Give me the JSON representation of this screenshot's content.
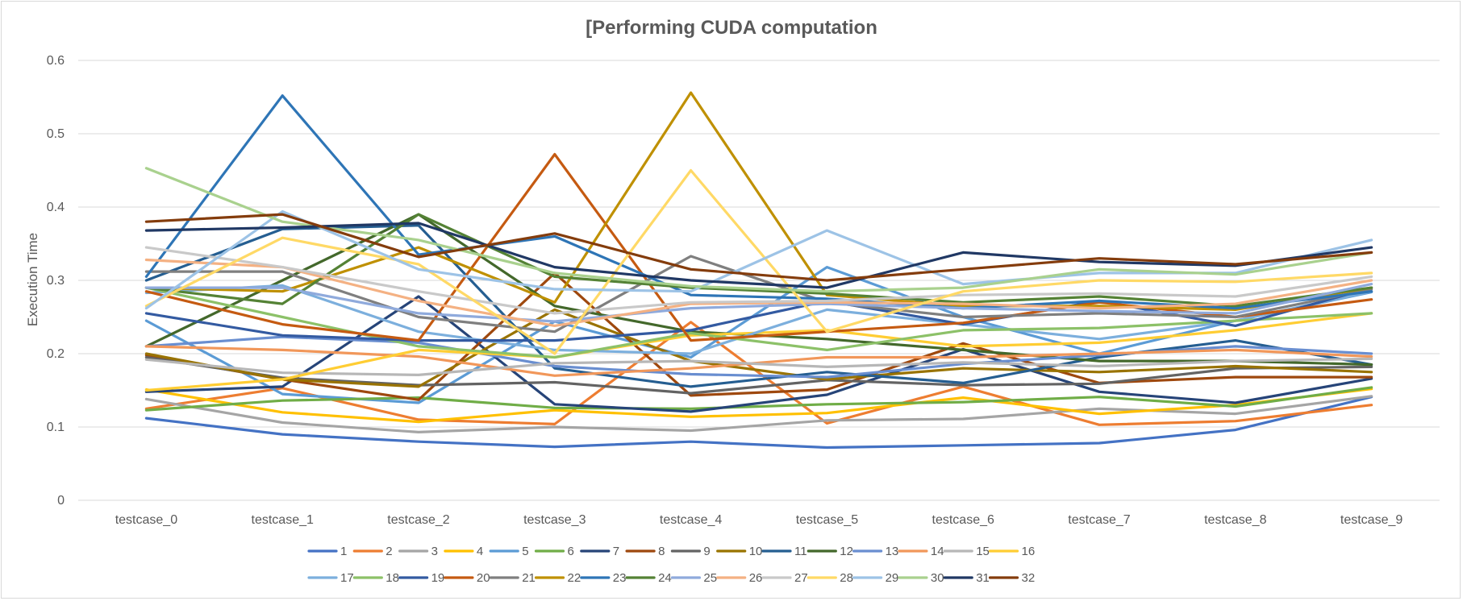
{
  "chart_data": {
    "type": "line",
    "title": "[Performing CUDA computation",
    "xlabel": "",
    "ylabel": "Execution Time",
    "ylim": [
      0,
      0.6
    ],
    "yticks": [
      0,
      0.1,
      0.2,
      0.3,
      0.4,
      0.5,
      0.6
    ],
    "ytick_labels": [
      "0",
      "0.1",
      "0.2",
      "0.3",
      "0.4",
      "0.5",
      "0.6"
    ],
    "grid": "horizontal",
    "legend_position": "bottom",
    "categories": [
      "testcase_0",
      "testcase_1",
      "testcase_2",
      "testcase_3",
      "testcase_4",
      "testcase_5",
      "testcase_6",
      "testcase_7",
      "testcase_8",
      "testcase_9"
    ],
    "series": [
      {
        "name": "1",
        "color": "#4472C4",
        "values": [
          0.112,
          0.09,
          0.08,
          0.073,
          0.08,
          0.072,
          0.075,
          0.078,
          0.096,
          0.141
        ]
      },
      {
        "name": "2",
        "color": "#ED7D31",
        "values": [
          0.125,
          0.153,
          0.11,
          0.104,
          0.243,
          0.105,
          0.155,
          0.103,
          0.108,
          0.13
        ]
      },
      {
        "name": "3",
        "color": "#A5A5A5",
        "values": [
          0.138,
          0.106,
          0.093,
          0.1,
          0.095,
          0.109,
          0.111,
          0.125,
          0.118,
          0.142
        ]
      },
      {
        "name": "4",
        "color": "#FFC000",
        "values": [
          0.151,
          0.12,
          0.107,
          0.123,
          0.114,
          0.119,
          0.14,
          0.118,
          0.13,
          0.152
        ]
      },
      {
        "name": "5",
        "color": "#5B9BD5",
        "values": [
          0.245,
          0.145,
          0.133,
          0.244,
          0.195,
          0.318,
          0.25,
          0.2,
          0.245,
          0.284
        ]
      },
      {
        "name": "6",
        "color": "#70AD47",
        "values": [
          0.123,
          0.136,
          0.14,
          0.126,
          0.125,
          0.131,
          0.134,
          0.141,
          0.128,
          0.154
        ]
      },
      {
        "name": "7",
        "color": "#264478",
        "values": [
          0.148,
          0.155,
          0.278,
          0.131,
          0.121,
          0.144,
          0.206,
          0.148,
          0.133,
          0.166
        ]
      },
      {
        "name": "8",
        "color": "#9E480E",
        "values": [
          0.198,
          0.165,
          0.137,
          0.31,
          0.143,
          0.151,
          0.214,
          0.16,
          0.168,
          0.168
        ]
      },
      {
        "name": "9",
        "color": "#636363",
        "values": [
          0.195,
          0.167,
          0.157,
          0.161,
          0.146,
          0.164,
          0.157,
          0.159,
          0.18,
          0.182
        ]
      },
      {
        "name": "10",
        "color": "#997300",
        "values": [
          0.2,
          0.165,
          0.155,
          0.26,
          0.19,
          0.165,
          0.18,
          0.175,
          0.183,
          0.175
        ]
      },
      {
        "name": "11",
        "color": "#255E91",
        "values": [
          0.3,
          0.37,
          0.375,
          0.18,
          0.155,
          0.175,
          0.16,
          0.195,
          0.218,
          0.185
        ]
      },
      {
        "name": "12",
        "color": "#43682B",
        "values": [
          0.21,
          0.3,
          0.39,
          0.265,
          0.23,
          0.22,
          0.205,
          0.19,
          0.19,
          0.185
        ]
      },
      {
        "name": "13",
        "color": "#698ED0",
        "values": [
          0.21,
          0.223,
          0.215,
          0.183,
          0.172,
          0.168,
          0.186,
          0.198,
          0.21,
          0.2
        ]
      },
      {
        "name": "14",
        "color": "#F1975A",
        "values": [
          0.21,
          0.205,
          0.196,
          0.17,
          0.18,
          0.195,
          0.195,
          0.2,
          0.205,
          0.196
        ]
      },
      {
        "name": "15",
        "color": "#B7B7B7",
        "values": [
          0.192,
          0.174,
          0.171,
          0.187,
          0.19,
          0.182,
          0.188,
          0.183,
          0.19,
          0.193
        ]
      },
      {
        "name": "16",
        "color": "#FFCD33",
        "values": [
          0.15,
          0.165,
          0.205,
          0.195,
          0.225,
          0.232,
          0.21,
          0.215,
          0.232,
          0.255
        ]
      },
      {
        "name": "17",
        "color": "#7CAFDD",
        "values": [
          0.283,
          0.293,
          0.23,
          0.205,
          0.2,
          0.26,
          0.24,
          0.22,
          0.245,
          0.285
        ]
      },
      {
        "name": "18",
        "color": "#8CC168",
        "values": [
          0.29,
          0.25,
          0.21,
          0.195,
          0.228,
          0.205,
          0.232,
          0.235,
          0.245,
          0.255
        ]
      },
      {
        "name": "19",
        "color": "#335AA1",
        "values": [
          0.255,
          0.225,
          0.218,
          0.218,
          0.232,
          0.272,
          0.24,
          0.272,
          0.238,
          0.29
        ]
      },
      {
        "name": "20",
        "color": "#C55A11",
        "values": [
          0.285,
          0.24,
          0.218,
          0.472,
          0.218,
          0.23,
          0.242,
          0.27,
          0.25,
          0.274
        ]
      },
      {
        "name": "21",
        "color": "#7F7F7F",
        "values": [
          0.312,
          0.312,
          0.25,
          0.23,
          0.333,
          0.27,
          0.25,
          0.255,
          0.25,
          0.288
        ]
      },
      {
        "name": "22",
        "color": "#BF9000",
        "values": [
          0.29,
          0.285,
          0.345,
          0.27,
          0.556,
          0.28,
          0.265,
          0.265,
          0.26,
          0.29
        ]
      },
      {
        "name": "23",
        "color": "#2E75B6",
        "values": [
          0.305,
          0.552,
          0.335,
          0.36,
          0.28,
          0.275,
          0.262,
          0.272,
          0.262,
          0.285
        ]
      },
      {
        "name": "24",
        "color": "#548235",
        "values": [
          0.29,
          0.268,
          0.39,
          0.305,
          0.29,
          0.282,
          0.27,
          0.278,
          0.265,
          0.29
        ]
      },
      {
        "name": "25",
        "color": "#8FAADC",
        "values": [
          0.29,
          0.29,
          0.255,
          0.244,
          0.262,
          0.268,
          0.262,
          0.258,
          0.255,
          0.295
        ]
      },
      {
        "name": "26",
        "color": "#F4B183",
        "values": [
          0.328,
          0.318,
          0.272,
          0.238,
          0.268,
          0.27,
          0.268,
          0.262,
          0.268,
          0.3
        ]
      },
      {
        "name": "27",
        "color": "#C9C9C9",
        "values": [
          0.345,
          0.318,
          0.285,
          0.255,
          0.27,
          0.272,
          0.28,
          0.282,
          0.278,
          0.305
        ]
      },
      {
        "name": "28",
        "color": "#FFD966",
        "values": [
          0.265,
          0.358,
          0.322,
          0.2,
          0.45,
          0.23,
          0.285,
          0.3,
          0.298,
          0.31
        ]
      },
      {
        "name": "29",
        "color": "#9DC3E6",
        "values": [
          0.262,
          0.394,
          0.315,
          0.288,
          0.285,
          0.368,
          0.295,
          0.31,
          0.31,
          0.355
        ]
      },
      {
        "name": "30",
        "color": "#A9D18E",
        "values": [
          0.453,
          0.38,
          0.355,
          0.31,
          0.292,
          0.285,
          0.29,
          0.315,
          0.308,
          0.338
        ]
      },
      {
        "name": "31",
        "color": "#203864",
        "values": [
          0.368,
          0.372,
          0.378,
          0.318,
          0.3,
          0.29,
          0.338,
          0.325,
          0.32,
          0.345
        ]
      },
      {
        "name": "32",
        "color": "#843C0C",
        "values": [
          0.38,
          0.39,
          0.332,
          0.364,
          0.315,
          0.3,
          0.315,
          0.33,
          0.322,
          0.338
        ]
      }
    ]
  }
}
